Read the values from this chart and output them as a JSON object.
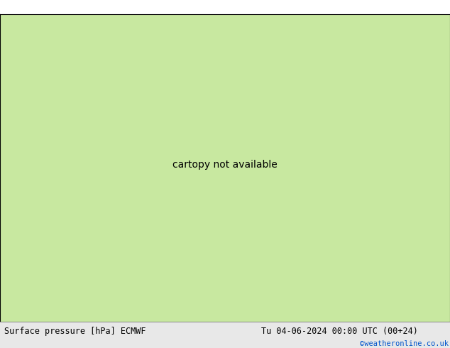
{
  "title_left": "Surface pressure [hPa] ECMWF",
  "title_right": "Tu 04-06-2024 00:00 UTC (00+24)",
  "copyright": "©weatheronline.co.uk",
  "fig_width": 6.34,
  "fig_height": 4.9,
  "dpi": 100,
  "land_green": "#c8e8a0",
  "sea_gray": "#c8c8c8",
  "border_black": "#000000",
  "border_gray": "#888888",
  "red": "#cc0000",
  "black": "#000000",
  "blue": "#0055cc",
  "footer_bg": "#e8e8e8",
  "footer_border": "#aaaaaa",
  "label_fs": 8,
  "footer_fs": 8.5,
  "copy_fs": 7.5,
  "copy_color": "#0055cc",
  "lon_min": 2.5,
  "lon_max": 18.5,
  "lat_min": 46.5,
  "lat_max": 56.0
}
